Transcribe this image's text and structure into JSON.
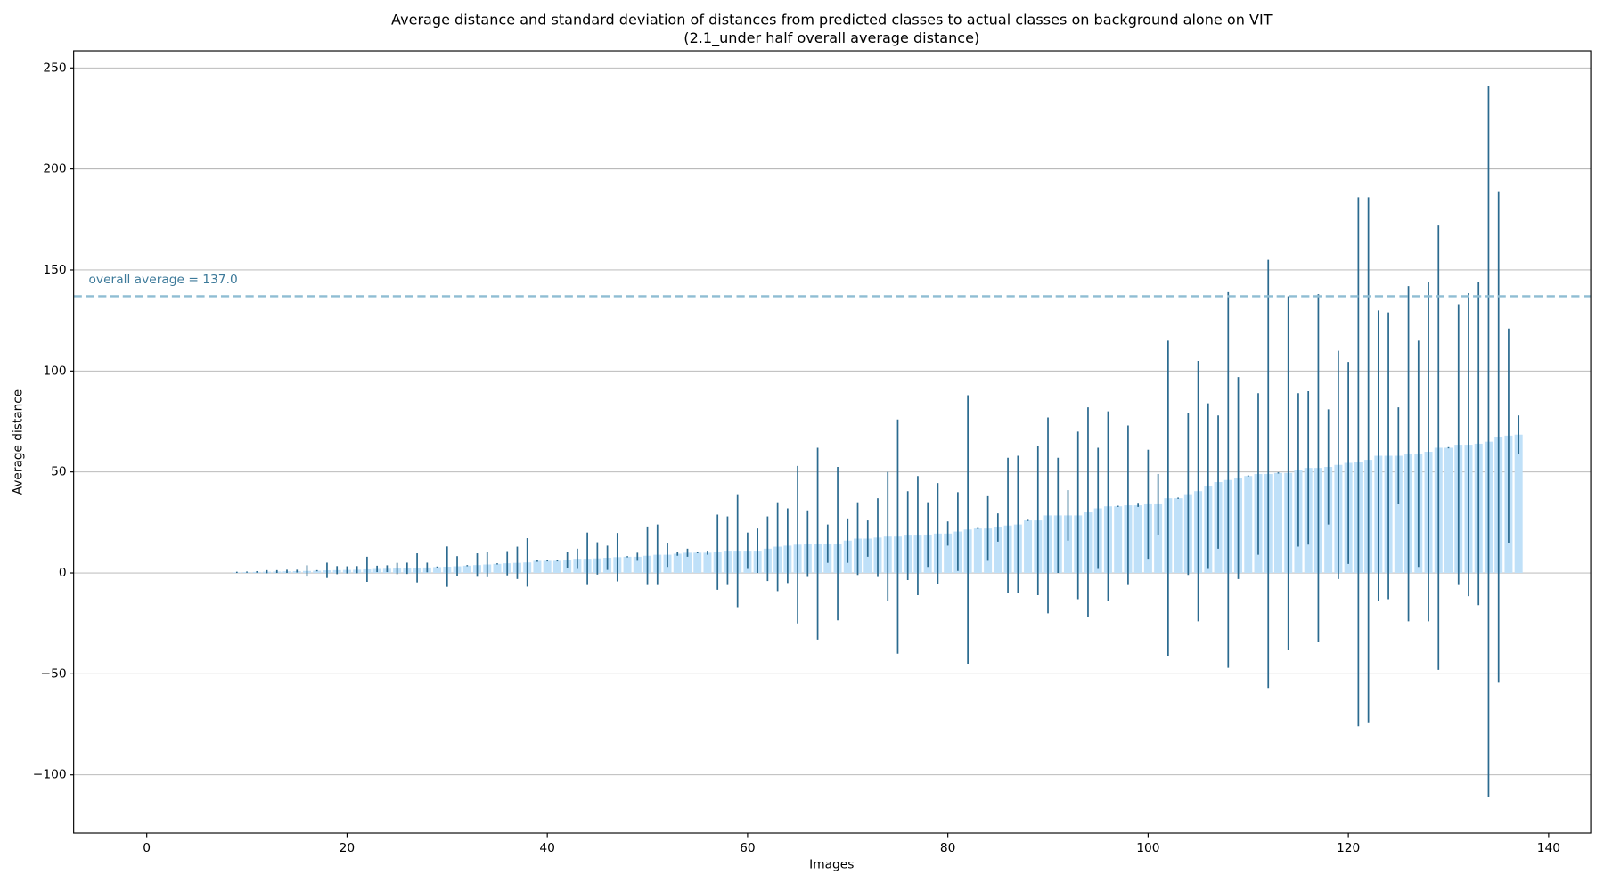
{
  "chart_data": {
    "type": "bar",
    "title": "Average distance and standard deviation of distances from predicted classes to actual classes on background alone on VIT",
    "subtitle": "(2.1_under half overall average distance)",
    "x_label": "Images",
    "y_label": "Average distance",
    "x": [
      0,
      1,
      2,
      3,
      4,
      5,
      6,
      7,
      8,
      9,
      10,
      11,
      12,
      13,
      14,
      15,
      16,
      17,
      18,
      19,
      20,
      21,
      22,
      23,
      24,
      25,
      26,
      27,
      28,
      29,
      30,
      31,
      32,
      33,
      34,
      35,
      36,
      37,
      38,
      39,
      40,
      41,
      42,
      43,
      44,
      45,
      46,
      47,
      48,
      49,
      50,
      51,
      52,
      53,
      54,
      55,
      56,
      57,
      58,
      59,
      60,
      61,
      62,
      63,
      64,
      65,
      66,
      67,
      68,
      69,
      70,
      71,
      72,
      73,
      74,
      75,
      76,
      77,
      78,
      79,
      80,
      81,
      82,
      83,
      84,
      85,
      86,
      87,
      88,
      89,
      90,
      91,
      92,
      93,
      94,
      95,
      96,
      97,
      98,
      99,
      100,
      101,
      102,
      103,
      104,
      105,
      106,
      107,
      108,
      109,
      110,
      111,
      112,
      113,
      114,
      115,
      116,
      117,
      118,
      119,
      120,
      121,
      122,
      123,
      124,
      125,
      126,
      127,
      128,
      129,
      130,
      131,
      132,
      133,
      134,
      135,
      136,
      137
    ],
    "series": [
      {
        "color": "#bfe0f8",
        "error_color": "#2b6a8f",
        "values": [
          0,
          0,
          0,
          0,
          0,
          0,
          0,
          0,
          0,
          0.3,
          0.4,
          0.5,
          0.6,
          0.7,
          0.8,
          0.9,
          1.0,
          1.1,
          1.3,
          1.4,
          1.5,
          1.6,
          1.8,
          2.0,
          2.1,
          2.2,
          2.3,
          2.5,
          2.7,
          2.9,
          3.1,
          3.3,
          3.6,
          3.9,
          4.2,
          4.5,
          4.8,
          5.0,
          5.2,
          6,
          6,
          6,
          6.5,
          7,
          7,
          7.2,
          7.5,
          7.8,
          8,
          8,
          8.5,
          9,
          9,
          9.5,
          10,
          10,
          10,
          10.3,
          11,
          11,
          11,
          11,
          12,
          13,
          13.5,
          14,
          14.5,
          14.5,
          14.5,
          14.5,
          16,
          17,
          17,
          17.5,
          18,
          18,
          18.5,
          18.5,
          19,
          19.5,
          19.5,
          20.5,
          21.5,
          22,
          22,
          22.5,
          23.5,
          24,
          26,
          26,
          28.5,
          28.5,
          28.5,
          28.5,
          30,
          32,
          33,
          33,
          33.5,
          33.5,
          34,
          34,
          37,
          37,
          39,
          40.5,
          43,
          45,
          46,
          47,
          48,
          49,
          49,
          49.5,
          49.5,
          51,
          52,
          52,
          52.5,
          53.5,
          54.5,
          55,
          56,
          58,
          58,
          58,
          59,
          59,
          60,
          62,
          62,
          63.5,
          63.5,
          64,
          65,
          67.5,
          68,
          68.5
        ],
        "errors": [
          0,
          0,
          0,
          0,
          0,
          0,
          0,
          0,
          0,
          0.3,
          0.3,
          0.4,
          0.8,
          0.7,
          0.8,
          0.7,
          2.8,
          0.3,
          3.8,
          2,
          1.8,
          1.8,
          6.2,
          1.6,
          1.7,
          2.8,
          2.8,
          7.2,
          2.4,
          0.3,
          10,
          5,
          0.3,
          5.8,
          6.3,
          0.3,
          6,
          8,
          12,
          0.5,
          0.3,
          0.3,
          4,
          5,
          13,
          8,
          6,
          12,
          0.3,
          2,
          14.5,
          15,
          6,
          1,
          2,
          0.3,
          1,
          18.6,
          17,
          28,
          9,
          11,
          16,
          22,
          18.5,
          39,
          16.5,
          47.5,
          9.5,
          38,
          11,
          18,
          9,
          19.5,
          32,
          58,
          22,
          29.5,
          16,
          25,
          6,
          19.5,
          66.5,
          0.3,
          16,
          7,
          33.5,
          34,
          0.3,
          37,
          48.5,
          28.5,
          12.5,
          41.5,
          52,
          30,
          47,
          0.3,
          39.5,
          0.8,
          27,
          15,
          78,
          0.3,
          40,
          64.5,
          41,
          33,
          93,
          50,
          0.3,
          40,
          106,
          0.3,
          87.5,
          38,
          38,
          86,
          28.5,
          56.5,
          50,
          131,
          130,
          72,
          71,
          24,
          83,
          56,
          84,
          110,
          0.3,
          69.5,
          75,
          80,
          176,
          121.5,
          53,
          9.5
        ]
      }
    ],
    "hline": {
      "value": 137.0,
      "label": "overall average = 137.0",
      "color": "#8fbdd3",
      "text_color": "#3d7a9a"
    },
    "xlim": [
      -7.3,
      144.2
    ],
    "ylim": [
      -128.8,
      258.5
    ],
    "xticks": [
      0,
      20,
      40,
      60,
      80,
      100,
      120,
      140
    ],
    "yticks": [
      {
        "value": -100,
        "label": "−100"
      },
      {
        "value": -50,
        "label": "−50"
      },
      0,
      50,
      100,
      150,
      200,
      250
    ],
    "grid": true
  }
}
